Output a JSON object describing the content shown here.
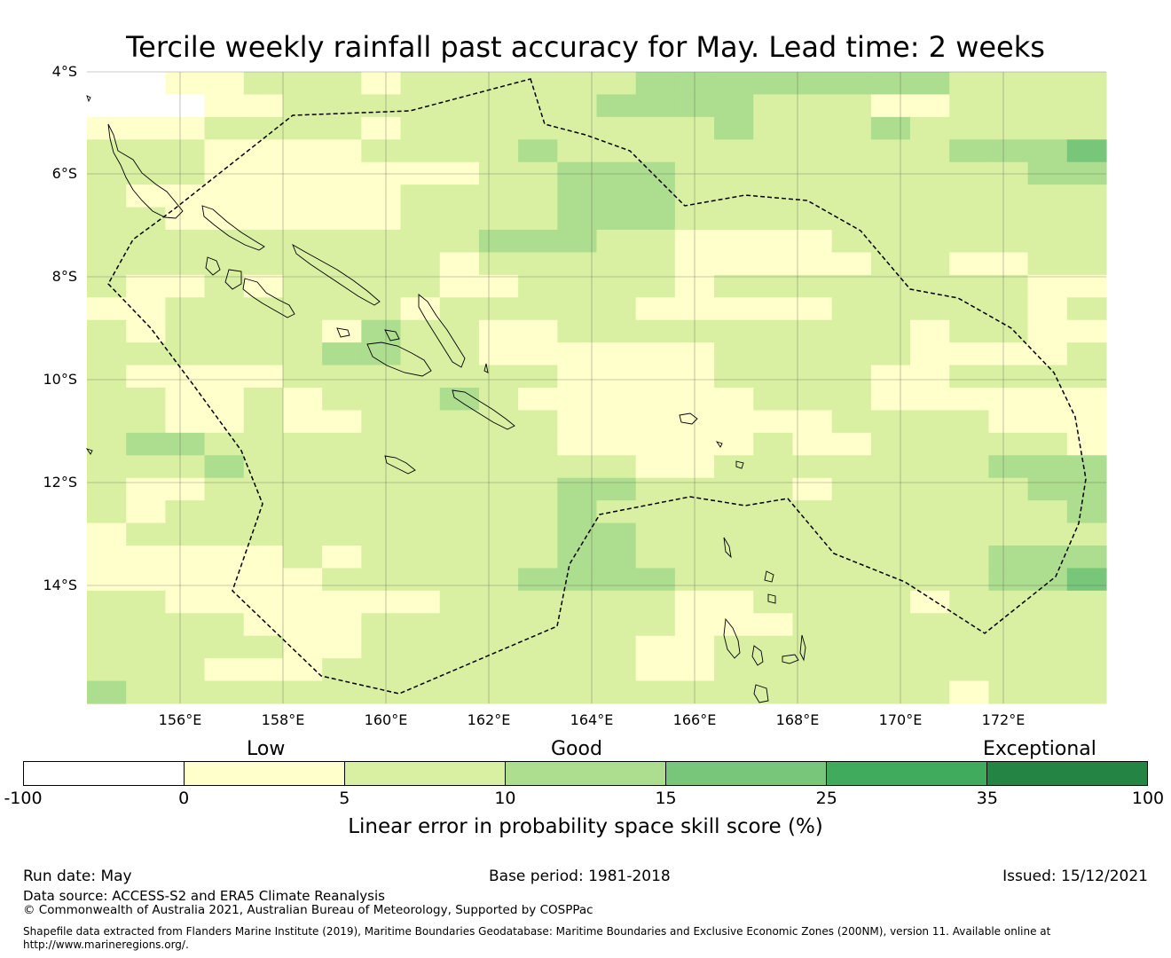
{
  "title": "Tercile weekly rainfall past accuracy for May. Lead time: 2 weeks",
  "map": {
    "lon_ticks": [
      "156°E",
      "158°E",
      "160°E",
      "162°E",
      "164°E",
      "166°E",
      "168°E",
      "170°E",
      "172°E"
    ],
    "lat_ticks": [
      "4°S",
      "6°S",
      "8°S",
      "10°S",
      "12°S",
      "14°S"
    ],
    "grid": {
      "rows": [
        "00112221222222333333332222",
        "00011222222223333222112222",
        "11122221222222223222322222",
        "22211112222322222222223334",
        "22211111112233322222222233",
        "21111111222233322222222222",
        "22111111222233322222222222",
        "22222222223332211112222222",
        "22222222212222211111221122",
        "21121222211222212222222211",
        "11222222122222111112222212",
        "21222213221122222222212211",
        "22222233221111112222211112",
        "21111222222211112222112222",
        "22112122232111111222111111",
        "22112112222211111112222111",
        "23322222222211111211222221",
        "22232222222222112222222333",
        "21122222222233222212222233",
        "21222222222232222222222223",
        "12222222222233222222222222",
        "11111212222233222222222333",
        "11111122222333322222222334",
        "22111111122222211222212222",
        "22221112222222211122222222",
        "22222112222222112222222222",
        "22211122222222112222222222",
        "32222222222222222222221222"
      ],
      "colors": [
        "#ffffff",
        "#ffffcc",
        "#d9f0a3",
        "#addd8e",
        "#78c679"
      ],
      "missing_color": "#ffffff"
    }
  },
  "colorbar": {
    "categories": [
      "Low",
      "Good",
      "Exceptional"
    ],
    "ticks": [
      "-100",
      "0",
      "5",
      "10",
      "15",
      "25",
      "35",
      "100"
    ],
    "colors": [
      "#ffffff",
      "#ffffcc",
      "#d9f0a3",
      "#addd8e",
      "#78c679",
      "#41ab5d",
      "#238443"
    ],
    "label": "Linear error in probability space skill score (%)"
  },
  "footer": {
    "run_date": "Run date: May",
    "base_period": "Base period: 1981-2018",
    "issued": "Issued: 15/12/2021",
    "data_source": "Data source: ACCESS-S2 and ERA5 Climate Reanalysis",
    "copyright": "© Commonwealth of Australia 2021, Australian Bureau of Meteorology, Supported by COSPPac",
    "shapefile_line1": "Shapefile data extracted from Flanders Marine Institute (2019), Maritime Boundaries Geodatabase: Maritime Boundaries and Exclusive Economic Zones (200NM), version 11. Available online at",
    "shapefile_line2": "http://www.marineregions.org/."
  }
}
